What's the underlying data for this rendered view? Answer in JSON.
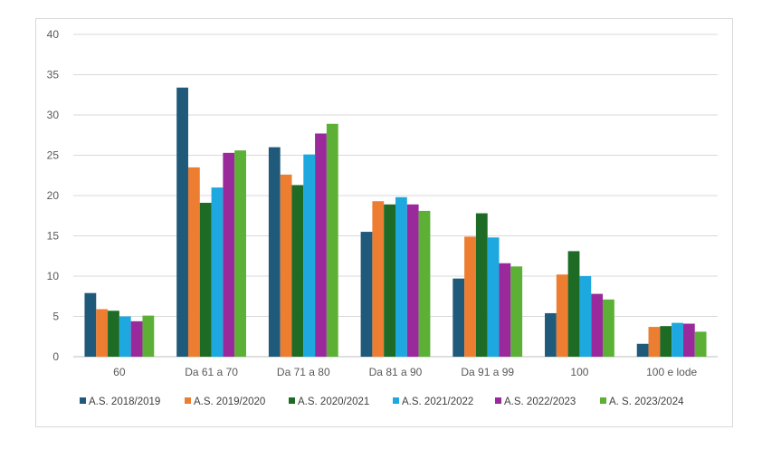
{
  "chart_data": {
    "type": "bar",
    "title": "",
    "xlabel": "",
    "ylabel": "",
    "ylim": [
      0,
      40
    ],
    "yticks": [
      0,
      5,
      10,
      15,
      20,
      25,
      30,
      35,
      40
    ],
    "grid": true,
    "legend_position": "bottom",
    "categories": [
      "60",
      "Da 61 a 70",
      "Da 71 a 80",
      "Da 81 a 90",
      "Da 91 a 99",
      "100",
      "100 e lode"
    ],
    "series": [
      {
        "name": "A.S. 2018/2019",
        "color": "#1f5a7a",
        "values": [
          7.9,
          33.4,
          26.0,
          15.5,
          9.7,
          5.4,
          1.6
        ]
      },
      {
        "name": "A.S. 2019/2020",
        "color": "#ed7d31",
        "values": [
          5.9,
          23.5,
          22.6,
          19.3,
          14.9,
          10.2,
          3.7
        ]
      },
      {
        "name": "A.S. 2020/2021",
        "color": "#1e6b26",
        "values": [
          5.7,
          19.1,
          21.3,
          18.9,
          17.8,
          13.1,
          3.8
        ]
      },
      {
        "name": "A.S. 2021/2022",
        "color": "#1ea8e0",
        "values": [
          5.0,
          21.0,
          25.1,
          19.8,
          14.8,
          10.0,
          4.2
        ]
      },
      {
        "name": "A.S. 2022/2023",
        "color": "#9a2a9c",
        "values": [
          4.4,
          25.3,
          27.7,
          18.9,
          11.6,
          7.8,
          4.1
        ]
      },
      {
        "name": "A. S. 2023/2024",
        "color": "#5bb035",
        "values": [
          5.1,
          25.6,
          28.9,
          18.1,
          11.2,
          7.1,
          3.1
        ]
      }
    ]
  }
}
